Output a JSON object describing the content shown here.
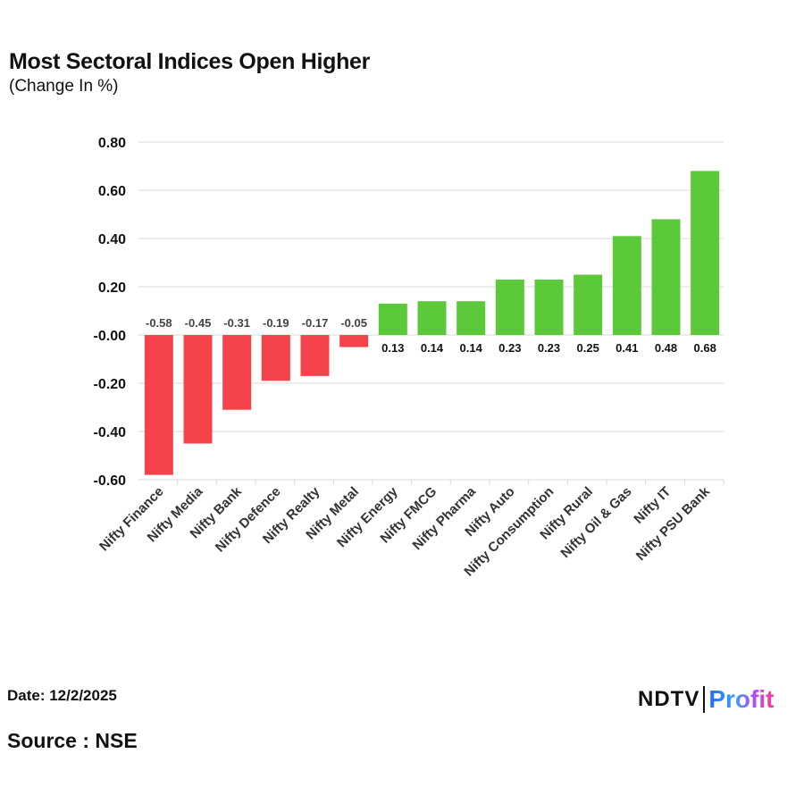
{
  "title": "Most Sectoral Indices Open Higher",
  "subtitle": "(Change In %)",
  "date": "Date: 12/2/2025",
  "source": "Source : NSE",
  "logo": {
    "ndtv": "NDTV",
    "profit": "Profit"
  },
  "colors": {
    "positive": "#5cc93b",
    "negative": "#f4434a",
    "grid": "#d9d9d9"
  },
  "chart_data": {
    "type": "bar",
    "title": "Most Sectoral Indices Open Higher",
    "subtitle": "(Change In %)",
    "categories": [
      "Nifty Finance",
      "Nifty Media",
      "Nifty Bank",
      "Nifty Defence",
      "Nifty Realty",
      "Nifty Metal",
      "Nifty Energy",
      "Nifty FMCG",
      "Nifty Pharma",
      "Nifty Auto",
      "Nifty Consumption",
      "Nifty Rural",
      "Nifty Oil & Gas",
      "Nifty IT",
      "Nifty PSU Bank"
    ],
    "values": [
      -0.58,
      -0.45,
      -0.31,
      -0.19,
      -0.17,
      -0.05,
      0.13,
      0.14,
      0.14,
      0.23,
      0.23,
      0.25,
      0.41,
      0.48,
      0.68
    ],
    "ylim": [
      -0.6,
      0.8
    ],
    "yticks": [
      "0.80",
      "0.60",
      "0.40",
      "0.20",
      "-0.00",
      "-0.20",
      "-0.40",
      "-0.60"
    ],
    "ytick_values": [
      0.8,
      0.6,
      0.4,
      0.2,
      0,
      -0.2,
      -0.4,
      -0.6
    ],
    "grid": true,
    "xlabel": "",
    "ylabel": ""
  }
}
